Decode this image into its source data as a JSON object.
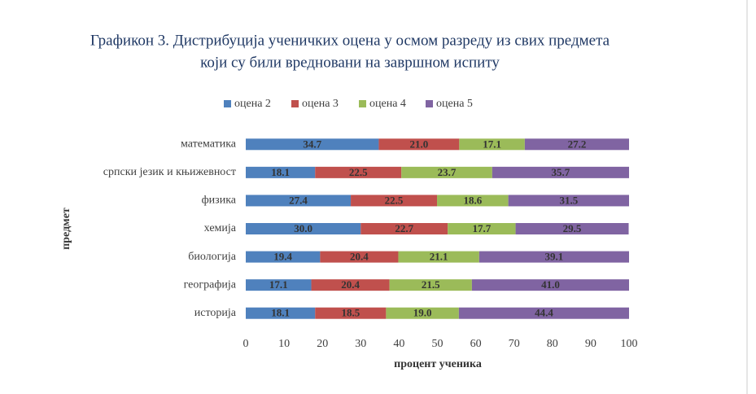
{
  "chart_data": {
    "type": "stacked-bar-horizontal",
    "title": [
      "Графикон 3. Дистрибуција ученичких оцена у осмом разреду из свих предмета",
      "који су били вредновани на завршном испиту"
    ],
    "x_label": "процент ученика",
    "y_label": "предмет",
    "categories": [
      "математика",
      "српски језик и књижевност",
      "физика",
      "хемија",
      "биологија",
      "географија",
      "историја"
    ],
    "series": [
      {
        "name": "оцена 2",
        "color": "#4f81bd",
        "values": [
          34.7,
          18.1,
          27.4,
          30,
          19.4,
          17.1,
          18.1
        ],
        "value_labels": [
          "34.7",
          "18.1",
          "27.4",
          "30.0",
          "19.4",
          "17.1",
          "18.1"
        ]
      },
      {
        "name": "оцена 3",
        "color": "#c0504d",
        "values": [
          21,
          22.5,
          22.5,
          22.7,
          20.4,
          20.4,
          18.5
        ],
        "value_labels": [
          "21.0",
          "22.5",
          "22.5",
          "22.7",
          "20.4",
          "20.4",
          "18.5"
        ]
      },
      {
        "name": "оцена 4",
        "color": "#9bbb59",
        "values": [
          17.1,
          23.7,
          18.6,
          17.7,
          21.1,
          21.5,
          19
        ],
        "value_labels": [
          "17.1",
          "23.7",
          "18.6",
          "17.7",
          "21.1",
          "21.5",
          "19.0"
        ]
      },
      {
        "name": "оцена 5",
        "color": "#8064a2",
        "values": [
          27.2,
          35.7,
          31.5,
          29.5,
          39.1,
          41,
          44.4
        ],
        "value_labels": [
          "27.2",
          "35.7",
          "31.5",
          "29.5",
          "39.1",
          "41.0",
          "44.4"
        ]
      }
    ],
    "xlim": [
      0,
      100
    ],
    "xticks": [
      0,
      10,
      20,
      30,
      40,
      50,
      60,
      70,
      80,
      90,
      100
    ],
    "grid": false,
    "legend": "top"
  }
}
